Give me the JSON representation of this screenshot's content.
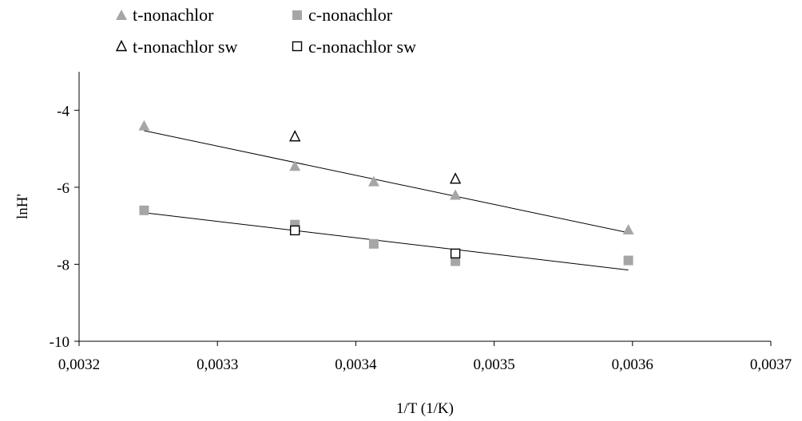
{
  "chart_data": {
    "type": "scatter",
    "title": "",
    "xlabel": "1/T (1/K)",
    "ylabel": "lnH'",
    "xlim": [
      0.0032,
      0.0037
    ],
    "ylim": [
      -10,
      -3
    ],
    "xticks": [
      0.0032,
      0.0033,
      0.0034,
      0.0035,
      0.0036,
      0.0037
    ],
    "xtick_labels": [
      "0,0032",
      "0,0033",
      "0,0034",
      "0,0035",
      "0,0036",
      "0,0037"
    ],
    "yticks": [
      -10,
      -8,
      -6,
      -4
    ],
    "ytick_labels": [
      "-10",
      "-8",
      "-6",
      "-4"
    ],
    "grid": false,
    "legend_position": "top-left",
    "series": [
      {
        "name": "t-nonachlor",
        "marker": "triangle-filled",
        "color": "#a6a6a6",
        "points": [
          {
            "x": 0.003247,
            "y": -4.4
          },
          {
            "x": 0.003356,
            "y": -5.45
          },
          {
            "x": 0.003413,
            "y": -5.85
          },
          {
            "x": 0.003472,
            "y": -6.2
          },
          {
            "x": 0.003597,
            "y": -7.1
          }
        ]
      },
      {
        "name": "c-nonachlor",
        "marker": "square-filled",
        "color": "#a6a6a6",
        "points": [
          {
            "x": 0.003247,
            "y": -6.6
          },
          {
            "x": 0.003356,
            "y": -6.97
          },
          {
            "x": 0.003413,
            "y": -7.47
          },
          {
            "x": 0.003472,
            "y": -7.92
          },
          {
            "x": 0.003597,
            "y": -7.9
          }
        ]
      },
      {
        "name": "t-nonachlor sw",
        "marker": "triangle-open",
        "color": "#000000",
        "points": [
          {
            "x": 0.003356,
            "y": -4.68
          },
          {
            "x": 0.003472,
            "y": -5.78
          }
        ]
      },
      {
        "name": "c-nonachlor sw",
        "marker": "square-open",
        "color": "#000000",
        "points": [
          {
            "x": 0.003356,
            "y": -7.12
          },
          {
            "x": 0.003472,
            "y": -7.72
          }
        ]
      }
    ],
    "trendlines": [
      {
        "series": "t-nonachlor",
        "x": [
          0.003247,
          0.003597
        ],
        "y": [
          -4.53,
          -7.18
        ]
      },
      {
        "series": "c-nonachlor",
        "x": [
          0.003247,
          0.003597
        ],
        "y": [
          -6.66,
          -8.15
        ]
      }
    ]
  }
}
